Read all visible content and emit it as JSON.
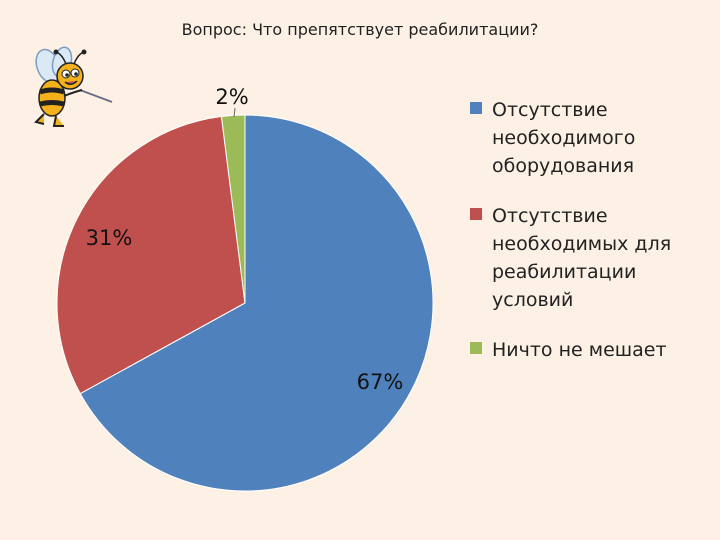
{
  "chart_data": {
    "type": "pie",
    "title": "Вопрос: Что препятствует реабилитации?",
    "slices": [
      {
        "label": "Отсутствие необходимого оборудования",
        "label_lines": [
          "Отсутствие",
          "необходимого",
          "оборудования"
        ],
        "value": 67,
        "display": "67%",
        "color": "#4f81bd"
      },
      {
        "label": "Отсутствие необходимых для реабилитации условий",
        "label_lines": [
          "Отсутствие",
          "необходимых для",
          "реабилитации",
          "условий"
        ],
        "value": 31,
        "display": "31%",
        "color": "#c0504d"
      },
      {
        "label": "Ничто не мешает",
        "label_lines": [
          "Ничто не мешает"
        ],
        "value": 2,
        "display": "2%",
        "color": "#9bbb59"
      }
    ],
    "legend_position": "right",
    "start_angle_deg": 0,
    "direction": "clockwise"
  },
  "decoration": {
    "icon": "bee-icon"
  }
}
